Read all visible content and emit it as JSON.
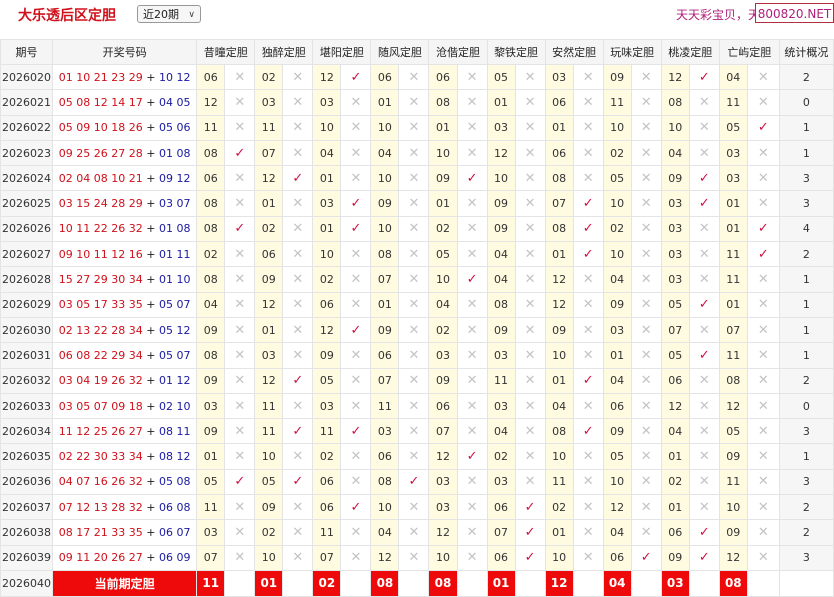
{
  "header": {
    "title": "大乐透后区定胆",
    "period_select": "近20期",
    "slogan": "天天彩宝贝，天",
    "site_badge": "800820.NET"
  },
  "table": {
    "columns": [
      "期号",
      "开奖号码",
      "昔曈定胆",
      "独醉定胆",
      "堪阳定胆",
      "随风定胆",
      "沧偕定胆",
      "黎铁定胆",
      "安然定胆",
      "玩味定胆",
      "桃凌定胆",
      "亡屿定胆",
      "统计概况"
    ],
    "rows": [
      {
        "period": "2026020",
        "red": "01 10 21 23 29",
        "blue": "10 12",
        "picks": [
          "06",
          "02",
          "12",
          "06",
          "06",
          "05",
          "03",
          "09",
          "12",
          "04"
        ],
        "hits": [
          0,
          0,
          1,
          0,
          0,
          0,
          0,
          0,
          1,
          0
        ],
        "count": "2"
      },
      {
        "period": "2026021",
        "red": "05 08 12 14 17",
        "blue": "04 05",
        "picks": [
          "12",
          "03",
          "03",
          "01",
          "08",
          "01",
          "06",
          "11",
          "08",
          "11"
        ],
        "hits": [
          0,
          0,
          0,
          0,
          0,
          0,
          0,
          0,
          0,
          0
        ],
        "count": "0"
      },
      {
        "period": "2026022",
        "red": "05 09 10 18 26",
        "blue": "05 06",
        "picks": [
          "11",
          "11",
          "10",
          "10",
          "01",
          "03",
          "01",
          "10",
          "10",
          "05"
        ],
        "hits": [
          0,
          0,
          0,
          0,
          0,
          0,
          0,
          0,
          0,
          1
        ],
        "count": "1"
      },
      {
        "period": "2026023",
        "red": "09 25 26 27 28",
        "blue": "01 08",
        "picks": [
          "08",
          "07",
          "04",
          "04",
          "10",
          "12",
          "06",
          "02",
          "04",
          "03"
        ],
        "hits": [
          1,
          0,
          0,
          0,
          0,
          0,
          0,
          0,
          0,
          0
        ],
        "count": "1"
      },
      {
        "period": "2026024",
        "red": "02 04 08 10 21",
        "blue": "09 12",
        "picks": [
          "06",
          "12",
          "01",
          "10",
          "09",
          "10",
          "08",
          "05",
          "09",
          "03"
        ],
        "hits": [
          0,
          1,
          0,
          0,
          1,
          0,
          0,
          0,
          1,
          0
        ],
        "count": "3"
      },
      {
        "period": "2026025",
        "red": "03 15 24 28 29",
        "blue": "03 07",
        "picks": [
          "08",
          "01",
          "03",
          "09",
          "01",
          "09",
          "07",
          "10",
          "03",
          "01"
        ],
        "hits": [
          0,
          0,
          1,
          0,
          0,
          0,
          1,
          0,
          1,
          0
        ],
        "count": "3"
      },
      {
        "period": "2026026",
        "red": "10 11 22 26 32",
        "blue": "01 08",
        "picks": [
          "08",
          "02",
          "01",
          "10",
          "02",
          "09",
          "08",
          "02",
          "03",
          "01"
        ],
        "hits": [
          1,
          0,
          1,
          0,
          0,
          0,
          1,
          0,
          0,
          1
        ],
        "count": "4"
      },
      {
        "period": "2026027",
        "red": "09 10 11 12 16",
        "blue": "01 11",
        "picks": [
          "02",
          "06",
          "10",
          "08",
          "05",
          "04",
          "01",
          "10",
          "03",
          "11"
        ],
        "hits": [
          0,
          0,
          0,
          0,
          0,
          0,
          1,
          0,
          0,
          1
        ],
        "count": "2"
      },
      {
        "period": "2026028",
        "red": "15 27 29 30 34",
        "blue": "01 10",
        "picks": [
          "08",
          "09",
          "02",
          "07",
          "10",
          "04",
          "12",
          "04",
          "03",
          "11"
        ],
        "hits": [
          0,
          0,
          0,
          0,
          1,
          0,
          0,
          0,
          0,
          0
        ],
        "count": "1"
      },
      {
        "period": "2026029",
        "red": "03 05 17 33 35",
        "blue": "05 07",
        "picks": [
          "04",
          "12",
          "06",
          "01",
          "04",
          "08",
          "12",
          "09",
          "05",
          "01"
        ],
        "hits": [
          0,
          0,
          0,
          0,
          0,
          0,
          0,
          0,
          1,
          0
        ],
        "count": "1"
      },
      {
        "period": "2026030",
        "red": "02 13 22 28 34",
        "blue": "05 12",
        "picks": [
          "09",
          "01",
          "12",
          "09",
          "02",
          "09",
          "09",
          "03",
          "07",
          "07"
        ],
        "hits": [
          0,
          0,
          1,
          0,
          0,
          0,
          0,
          0,
          0,
          0
        ],
        "count": "1"
      },
      {
        "period": "2026031",
        "red": "06 08 22 29 34",
        "blue": "05 07",
        "picks": [
          "08",
          "03",
          "09",
          "06",
          "03",
          "03",
          "10",
          "01",
          "05",
          "11"
        ],
        "hits": [
          0,
          0,
          0,
          0,
          0,
          0,
          0,
          0,
          1,
          0
        ],
        "count": "1"
      },
      {
        "period": "2026032",
        "red": "03 04 19 26 32",
        "blue": "01 12",
        "picks": [
          "09",
          "12",
          "05",
          "07",
          "09",
          "11",
          "01",
          "04",
          "06",
          "08"
        ],
        "hits": [
          0,
          1,
          0,
          0,
          0,
          0,
          1,
          0,
          0,
          0
        ],
        "count": "2"
      },
      {
        "period": "2026033",
        "red": "03 05 07 09 18",
        "blue": "02 10",
        "picks": [
          "03",
          "11",
          "03",
          "11",
          "06",
          "03",
          "04",
          "06",
          "12",
          "12"
        ],
        "hits": [
          0,
          0,
          0,
          0,
          0,
          0,
          0,
          0,
          0,
          0
        ],
        "count": "0"
      },
      {
        "period": "2026034",
        "red": "11 12 25 26 27",
        "blue": "08 11",
        "picks": [
          "09",
          "11",
          "11",
          "03",
          "07",
          "04",
          "08",
          "09",
          "04",
          "05"
        ],
        "hits": [
          0,
          1,
          1,
          0,
          0,
          0,
          1,
          0,
          0,
          0
        ],
        "count": "3"
      },
      {
        "period": "2026035",
        "red": "02 22 30 33 34",
        "blue": "08 12",
        "picks": [
          "01",
          "10",
          "02",
          "06",
          "12",
          "02",
          "10",
          "05",
          "01",
          "09"
        ],
        "hits": [
          0,
          0,
          0,
          0,
          1,
          0,
          0,
          0,
          0,
          0
        ],
        "count": "1"
      },
      {
        "period": "2026036",
        "red": "04 07 16 26 32",
        "blue": "05 08",
        "picks": [
          "05",
          "05",
          "06",
          "08",
          "03",
          "03",
          "11",
          "10",
          "02",
          "11"
        ],
        "hits": [
          1,
          1,
          0,
          1,
          0,
          0,
          0,
          0,
          0,
          0
        ],
        "count": "3"
      },
      {
        "period": "2026037",
        "red": "07 12 13 28 32",
        "blue": "06 08",
        "picks": [
          "11",
          "09",
          "06",
          "10",
          "03",
          "06",
          "02",
          "12",
          "01",
          "10"
        ],
        "hits": [
          0,
          0,
          1,
          0,
          0,
          1,
          0,
          0,
          0,
          0
        ],
        "count": "2"
      },
      {
        "period": "2026038",
        "red": "08 17 21 33 35",
        "blue": "06 07",
        "picks": [
          "03",
          "02",
          "11",
          "04",
          "12",
          "07",
          "01",
          "04",
          "06",
          "09"
        ],
        "hits": [
          0,
          0,
          0,
          0,
          0,
          1,
          0,
          0,
          1,
          0
        ],
        "count": "2"
      },
      {
        "period": "2026039",
        "red": "09 11 20 26 27",
        "blue": "06 09",
        "picks": [
          "07",
          "10",
          "07",
          "12",
          "10",
          "06",
          "10",
          "06",
          "09",
          "12"
        ],
        "hits": [
          0,
          0,
          0,
          0,
          0,
          1,
          0,
          1,
          1,
          0
        ],
        "count": "3"
      }
    ],
    "current": {
      "period": "2026040",
      "label": "当前期定胆",
      "picks": [
        "11",
        "01",
        "02",
        "08",
        "08",
        "01",
        "12",
        "04",
        "03",
        "08"
      ]
    },
    "hit_symbol": "✓",
    "miss_symbol": "✕",
    "plus_symbol": "+"
  },
  "colors": {
    "red_ball": "#d0101a",
    "blue_ball": "#1a1aa0",
    "hit": "#d01040",
    "highlight": "#ee0a0a",
    "pick_bg": "#fffbe0"
  }
}
